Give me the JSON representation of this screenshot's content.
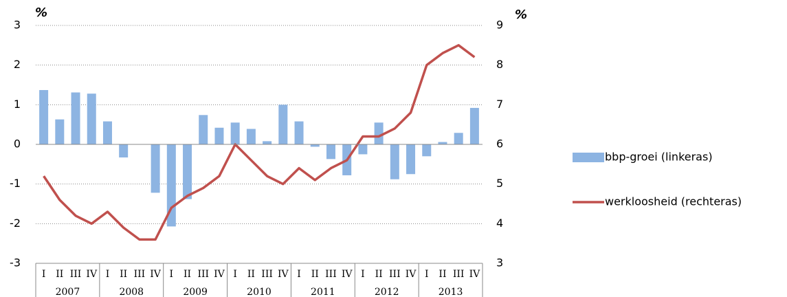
{
  "chart_data": {
    "type": "bar",
    "ylabel": "%",
    "y2label": "%",
    "categories": [
      "I",
      "II",
      "III",
      "IV",
      "I",
      "II",
      "III",
      "IV",
      "I",
      "II",
      "III",
      "IV",
      "I",
      "II",
      "III",
      "IV",
      "I",
      "II",
      "III",
      "IV",
      "I",
      "II",
      "III",
      "IV",
      "I",
      "II",
      "III",
      "IV"
    ],
    "years": [
      "2007",
      "2008",
      "2009",
      "2010",
      "2011",
      "2012",
      "2013"
    ],
    "series": [
      {
        "name": "bbp-groei (linkeras)",
        "type": "bar",
        "color": "#8db4e2",
        "values": [
          1.37,
          0.63,
          1.31,
          1.28,
          0.58,
          -0.33,
          0,
          -1.22,
          -2.07,
          -1.38,
          0.74,
          0.42,
          0.55,
          0.39,
          0.08,
          1.0,
          0.58,
          -0.06,
          -0.37,
          -0.78,
          -0.25,
          0.55,
          -0.88,
          -0.75,
          -0.3,
          0.06,
          0.29,
          0.92
        ]
      },
      {
        "name": "werkloosheid (rechteras)",
        "type": "line",
        "axis": "y2",
        "color": "#c0504d",
        "values": [
          5.2,
          4.6,
          4.2,
          4.0,
          4.3,
          3.9,
          3.6,
          3.6,
          4.4,
          4.7,
          4.9,
          5.2,
          6.0,
          5.6,
          5.2,
          5.0,
          5.4,
          5.1,
          5.4,
          5.6,
          6.2,
          6.2,
          6.4,
          6.8,
          8.0,
          8.3,
          8.5,
          8.2
        ]
      }
    ],
    "ylim": [
      -3,
      3
    ],
    "yticks": [
      -3,
      -2,
      -1,
      0,
      1,
      2,
      3
    ],
    "y2lim": [
      3,
      9
    ],
    "y2ticks": [
      3,
      4,
      5,
      6,
      7,
      8,
      9
    ],
    "grid": true
  }
}
